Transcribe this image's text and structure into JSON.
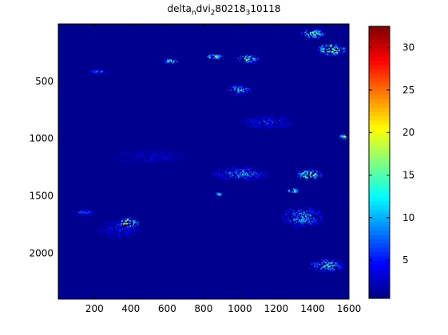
{
  "chart_data": {
    "type": "heatmap",
    "title_parts": [
      {
        "text": "delta",
        "sub": false
      },
      {
        "text": "n",
        "sub": true
      },
      {
        "text": "dvi",
        "sub": false
      },
      {
        "text": "2",
        "sub": true
      },
      {
        "text": "80218",
        "sub": false
      },
      {
        "text": "3",
        "sub": true
      },
      {
        "text": "10118",
        "sub": false
      }
    ],
    "xlim": [
      1,
      1600
    ],
    "ylim": [
      1,
      2400
    ],
    "y_reversed": true,
    "x_ticks": [
      200,
      400,
      600,
      800,
      1000,
      1200,
      1400,
      1600
    ],
    "x_tick_labels": [
      "200",
      "400",
      "600",
      "800",
      "1000",
      "1200",
      "1400",
      "1600"
    ],
    "y_ticks": [
      500,
      1000,
      1500,
      2000
    ],
    "y_tick_labels": [
      "500",
      "1000",
      "1500",
      "2000"
    ],
    "colorbar": {
      "colormap": "jet",
      "range": [
        0.5,
        32.5
      ],
      "ticks": [
        5,
        10,
        15,
        20,
        25,
        30
      ],
      "tick_labels": [
        "5",
        "10",
        "15",
        "20",
        "25",
        "30"
      ]
    },
    "background_value": 1,
    "hotspots": [
      {
        "x": 380,
        "y": 1730,
        "value": 32,
        "rx": 60,
        "ry": 45
      },
      {
        "x": 330,
        "y": 1790,
        "value": 8,
        "rx": 120,
        "ry": 80
      },
      {
        "x": 140,
        "y": 1640,
        "value": 12,
        "rx": 60,
        "ry": 25
      },
      {
        "x": 990,
        "y": 570,
        "value": 18,
        "rx": 70,
        "ry": 40
      },
      {
        "x": 1000,
        "y": 1300,
        "value": 14,
        "rx": 160,
        "ry": 60
      },
      {
        "x": 1380,
        "y": 1310,
        "value": 28,
        "rx": 70,
        "ry": 45
      },
      {
        "x": 1290,
        "y": 1450,
        "value": 30,
        "rx": 30,
        "ry": 20
      },
      {
        "x": 860,
        "y": 280,
        "value": 30,
        "rx": 45,
        "ry": 20
      },
      {
        "x": 1040,
        "y": 300,
        "value": 25,
        "rx": 60,
        "ry": 35
      },
      {
        "x": 620,
        "y": 320,
        "value": 22,
        "rx": 40,
        "ry": 25
      },
      {
        "x": 1500,
        "y": 220,
        "value": 30,
        "rx": 80,
        "ry": 50
      },
      {
        "x": 1570,
        "y": 980,
        "value": 28,
        "rx": 25,
        "ry": 20
      },
      {
        "x": 1400,
        "y": 80,
        "value": 24,
        "rx": 70,
        "ry": 40
      },
      {
        "x": 880,
        "y": 1480,
        "value": 26,
        "rx": 15,
        "ry": 12
      },
      {
        "x": 1470,
        "y": 2100,
        "value": 18,
        "rx": 100,
        "ry": 60
      },
      {
        "x": 1150,
        "y": 850,
        "value": 9,
        "rx": 150,
        "ry": 60
      },
      {
        "x": 500,
        "y": 1150,
        "value": 6,
        "rx": 200,
        "ry": 60
      },
      {
        "x": 220,
        "y": 410,
        "value": 12,
        "rx": 60,
        "ry": 20
      },
      {
        "x": 1340,
        "y": 1680,
        "value": 16,
        "rx": 120,
        "ry": 90
      }
    ]
  }
}
